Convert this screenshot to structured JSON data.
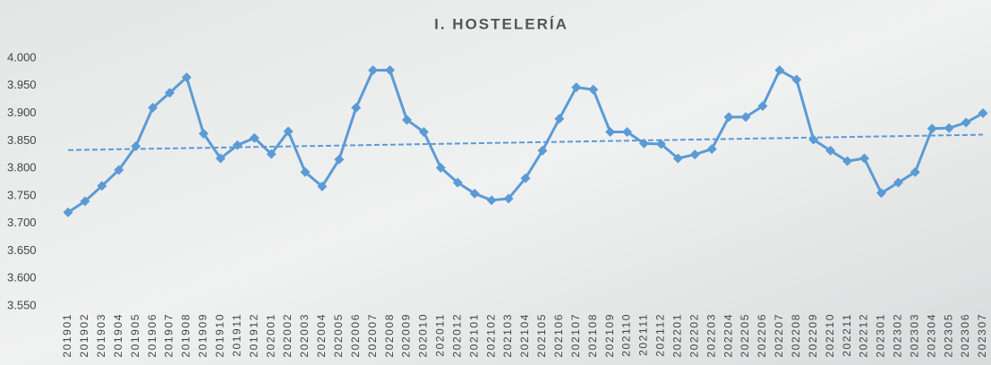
{
  "chart_data": {
    "type": "line",
    "title": "I. HOSTELERÍA",
    "categories": [
      "201901",
      "201902",
      "201903",
      "201904",
      "201905",
      "201906",
      "201907",
      "201908",
      "201909",
      "201910",
      "201911",
      "201912",
      "202001",
      "202002",
      "202003",
      "202004",
      "202005",
      "202006",
      "202007",
      "202008",
      "202009",
      "202010",
      "202011",
      "202012",
      "202101",
      "202102",
      "202103",
      "202104",
      "202105",
      "202106",
      "202107",
      "202108",
      "202109",
      "202110",
      "202111",
      "202112",
      "202201",
      "202202",
      "202203",
      "202204",
      "202205",
      "202206",
      "202207",
      "202208",
      "202209",
      "202210",
      "202211",
      "202212",
      "202301",
      "202302",
      "202303",
      "202304",
      "202305",
      "202306",
      "202307"
    ],
    "values": [
      3720,
      3740,
      3768,
      3797,
      3840,
      3910,
      3937,
      3965,
      3863,
      3818,
      3842,
      3855,
      3826,
      3867,
      3793,
      3767,
      3816,
      3910,
      3978,
      3978,
      3888,
      3866,
      3801,
      3774,
      3754,
      3742,
      3745,
      3782,
      3832,
      3890,
      3947,
      3943,
      3866,
      3866,
      3845,
      3844,
      3818,
      3825,
      3835,
      3893,
      3893,
      3913,
      3978,
      3961,
      3852,
      3832,
      3813,
      3818,
      3755,
      3774,
      3793,
      3872,
      3873,
      3883,
      3900
    ],
    "color": "#5b9bd5",
    "trendline": {
      "values": [
        3833,
        3861
      ],
      "color": "#5b9bd5",
      "style": "dashed"
    },
    "ylim": [
      3550,
      4000
    ],
    "yticks": [
      {
        "value": 3550,
        "label": "3.550"
      },
      {
        "value": 3600,
        "label": "3.600"
      },
      {
        "value": 3650,
        "label": "3.650"
      },
      {
        "value": 3700,
        "label": "3.700"
      },
      {
        "value": 3750,
        "label": "3.750"
      },
      {
        "value": 3800,
        "label": "3.800"
      },
      {
        "value": 3850,
        "label": "3.850"
      },
      {
        "value": 3900,
        "label": "3.900"
      },
      {
        "value": 3950,
        "label": "3.950"
      },
      {
        "value": 4000,
        "label": "4.000"
      }
    ],
    "grid": false
  }
}
